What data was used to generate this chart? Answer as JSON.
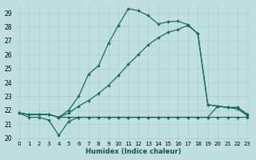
{
  "xlabel": "Humidex (Indice chaleur)",
  "background_color": "#c0e0e0",
  "grid_color": "#a8cccc",
  "line_color": "#1a6b5a",
  "xlim": [
    -0.3,
    23.3
  ],
  "ylim": [
    19.85,
    29.6
  ],
  "yticks": [
    20,
    21,
    22,
    23,
    24,
    25,
    26,
    27,
    28,
    29
  ],
  "xtick_labels": [
    "0",
    "1",
    "2",
    "3",
    "4",
    "5",
    "6",
    "7",
    "8",
    "9",
    "10",
    "11",
    "12",
    "13",
    "14",
    "15",
    "16",
    "17",
    "18",
    "19",
    "20",
    "21",
    "22",
    "23"
  ],
  "curve_steep_x": [
    0,
    1,
    2,
    3,
    4,
    5,
    6,
    7,
    8,
    9,
    10,
    11,
    12,
    13,
    14,
    15,
    16,
    17,
    18,
    19,
    20,
    21,
    22,
    23
  ],
  "curve_steep_y": [
    21.8,
    21.7,
    21.7,
    21.7,
    21.5,
    22.0,
    23.0,
    24.6,
    25.2,
    26.8,
    28.1,
    29.3,
    29.15,
    28.8,
    28.2,
    28.35,
    28.4,
    28.15,
    27.5,
    22.4,
    22.3,
    22.2,
    22.2,
    21.7
  ],
  "curve_grad_x": [
    0,
    1,
    2,
    3,
    4,
    5,
    6,
    7,
    8,
    9,
    10,
    11,
    12,
    13,
    14,
    15,
    16,
    17,
    18,
    19,
    20,
    21,
    22,
    23
  ],
  "curve_grad_y": [
    21.8,
    21.7,
    21.7,
    21.7,
    21.5,
    21.8,
    22.3,
    22.7,
    23.2,
    23.8,
    24.5,
    25.3,
    26.0,
    26.7,
    27.2,
    27.6,
    27.8,
    28.1,
    27.5,
    22.4,
    22.3,
    22.2,
    22.2,
    21.7
  ],
  "curve_flat_x": [
    0,
    1,
    2,
    3,
    4,
    5,
    6,
    7,
    8,
    9,
    10,
    11,
    12,
    13,
    14,
    15,
    16,
    17,
    18,
    19,
    20,
    21,
    22,
    23
  ],
  "curve_flat_y": [
    21.8,
    21.7,
    21.7,
    21.7,
    21.5,
    21.5,
    21.5,
    21.5,
    21.5,
    21.5,
    21.5,
    21.5,
    21.5,
    21.5,
    21.5,
    21.5,
    21.5,
    21.5,
    21.5,
    21.5,
    22.3,
    22.2,
    22.1,
    21.6
  ],
  "curve_dip_x": [
    0,
    1,
    2,
    3,
    4,
    5,
    6,
    7,
    8,
    9,
    10,
    11,
    12,
    13,
    14,
    15,
    16,
    17,
    18,
    19,
    20,
    21,
    22,
    23
  ],
  "curve_dip_y": [
    21.8,
    21.5,
    21.5,
    21.3,
    20.2,
    21.2,
    21.5,
    21.5,
    21.5,
    21.5,
    21.5,
    21.5,
    21.5,
    21.5,
    21.5,
    21.5,
    21.5,
    21.5,
    21.5,
    21.5,
    21.5,
    21.5,
    21.5,
    21.5
  ]
}
